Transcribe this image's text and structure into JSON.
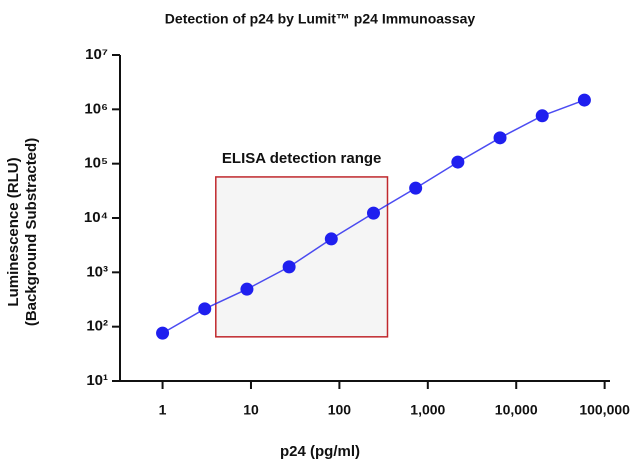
{
  "chart_data": {
    "type": "line",
    "title": "Detection of p24 by Lumit™ p24 Immunoassay",
    "x_label": "p24 (pg/ml)",
    "y_label": [
      "Luminescence (RLU)",
      "(Background Substracted)"
    ],
    "log_x": true,
    "log_y": true,
    "xlim": [
      0.33,
      115000
    ],
    "xticks": [
      1,
      10,
      100,
      {
        "value": 1000,
        "label": "1,000"
      },
      {
        "value": 10000,
        "label": "10,000"
      },
      {
        "value": 100000,
        "label": "100,000"
      }
    ],
    "ylim": [
      10,
      10000000
    ],
    "yticks": [
      {
        "value": 10,
        "label": "10¹"
      },
      {
        "value": 100,
        "label": "10²"
      },
      {
        "value": 1000,
        "label": "10³"
      },
      {
        "value": 10000,
        "label": "10⁴"
      },
      {
        "value": 100000,
        "label": "10⁵"
      },
      {
        "value": 1000000,
        "label": "10⁶"
      },
      {
        "value": 10000000,
        "label": "10⁷"
      }
    ],
    "series": [
      {
        "name": "p24",
        "color": "#1f1fef",
        "x": [
          1,
          3,
          9,
          27,
          81,
          243,
          729,
          2187,
          6561,
          19683,
          59049
        ],
        "values": [
          76,
          213,
          490,
          1260,
          4120,
          12300,
          35500,
          107000,
          299000,
          760000,
          1480000
        ]
      }
    ],
    "region": {
      "label": "ELISA detection range",
      "x": [
        4,
        350
      ],
      "y": [
        65,
        57000
      ],
      "color": "#c0282d"
    }
  }
}
